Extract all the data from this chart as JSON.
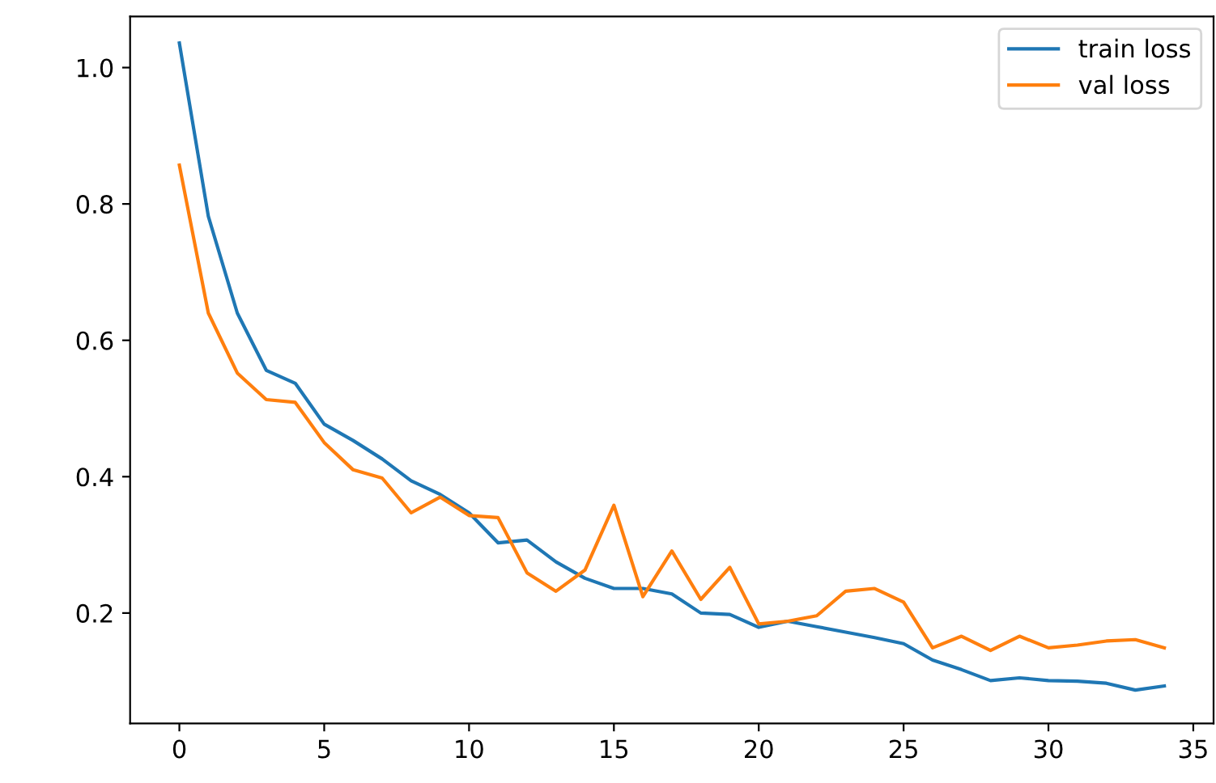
{
  "chart_data": {
    "type": "line",
    "x": [
      0,
      1,
      2,
      3,
      4,
      5,
      6,
      7,
      8,
      9,
      10,
      11,
      12,
      13,
      14,
      15,
      16,
      17,
      18,
      19,
      20,
      21,
      22,
      23,
      24,
      25,
      26,
      27,
      28,
      29,
      30,
      31,
      32,
      33,
      34
    ],
    "series": [
      {
        "name": "train loss",
        "color": "#1f77b4",
        "values": [
          1.036,
          0.782,
          0.64,
          0.556,
          0.537,
          0.477,
          0.453,
          0.426,
          0.394,
          0.374,
          0.347,
          0.303,
          0.307,
          0.275,
          0.251,
          0.236,
          0.236,
          0.228,
          0.2,
          0.198,
          0.179,
          0.188,
          0.18,
          0.172,
          0.164,
          0.155,
          0.131,
          0.117,
          0.101,
          0.105,
          0.101,
          0.1,
          0.097,
          0.087,
          0.093
        ]
      },
      {
        "name": "val loss",
        "color": "#ff7f0e",
        "values": [
          0.857,
          0.64,
          0.552,
          0.513,
          0.509,
          0.45,
          0.41,
          0.398,
          0.347,
          0.37,
          0.343,
          0.34,
          0.259,
          0.232,
          0.263,
          0.358,
          0.224,
          0.291,
          0.22,
          0.267,
          0.184,
          0.188,
          0.196,
          0.232,
          0.236,
          0.216,
          0.149,
          0.166,
          0.145,
          0.166,
          0.149,
          0.153,
          0.159,
          0.161,
          0.149
        ]
      }
    ],
    "xlim": [
      -1.7,
      35.7
    ],
    "xticks": [
      0,
      5,
      10,
      15,
      20,
      25,
      30,
      35
    ],
    "ylim": [
      0.038,
      1.075
    ],
    "yticks": [
      0.2,
      0.4,
      0.6,
      0.8,
      {
        "value": 1,
        "label": "1.0"
      }
    ],
    "legend": "top right",
    "grid": false
  }
}
